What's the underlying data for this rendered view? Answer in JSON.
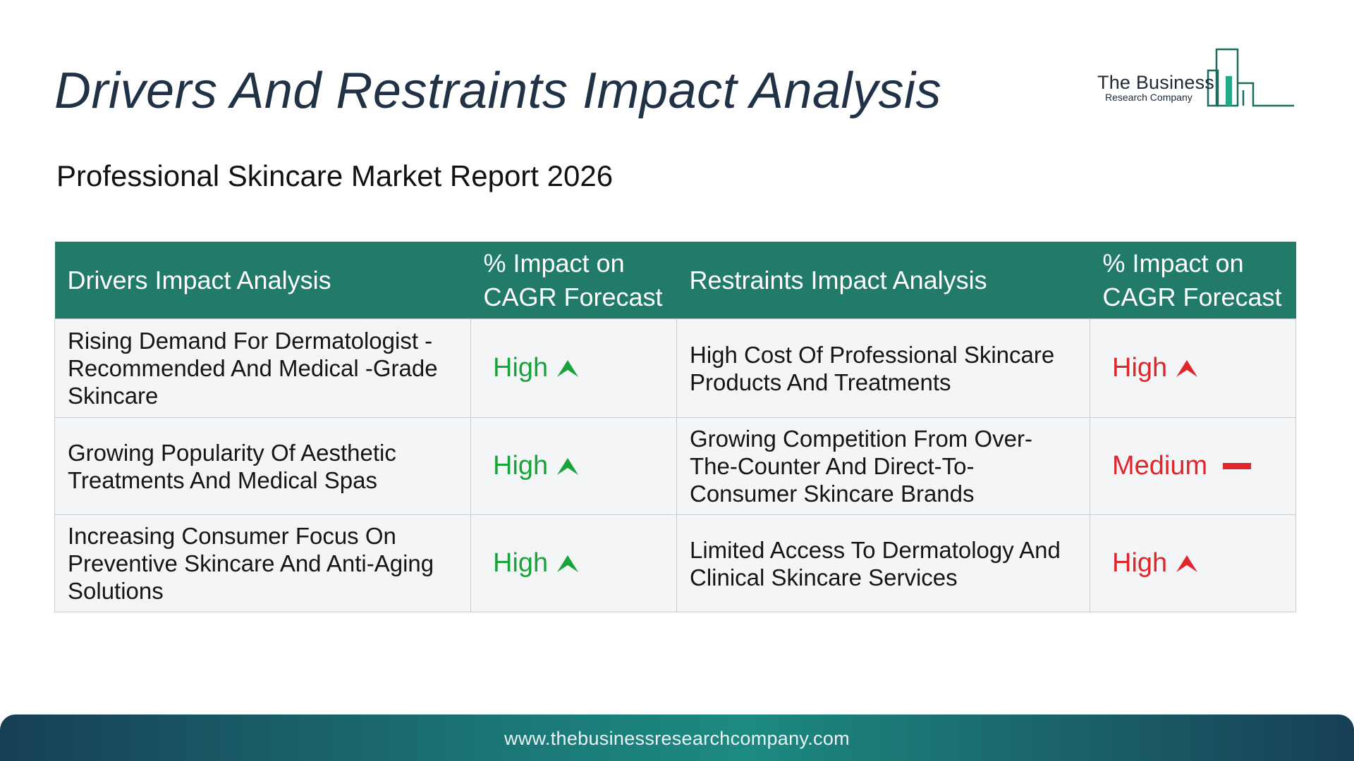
{
  "title": "Drivers And Restraints Impact Analysis",
  "subtitle": "Professional Skincare Market Report 2026",
  "logo": {
    "line1": "The Business",
    "line2": "Research Company"
  },
  "table": {
    "headers": {
      "drivers": "Drivers Impact Analysis",
      "drivers_impact": "% Impact on CAGR Forecast",
      "restraints": "Restraints Impact Analysis",
      "restraints_impact": "% Impact on CAGR Forecast"
    },
    "rows": [
      {
        "driver": "Rising Demand For Dermatologist -Recommended And Medical -Grade Skincare",
        "driver_impact": "High",
        "driver_icon": "arrow-up-icon",
        "restraint": "High Cost Of Professional Skincare Products And Treatments",
        "restraint_impact": "High",
        "restraint_icon": "arrow-up-icon"
      },
      {
        "driver": "Growing Popularity Of Aesthetic Treatments And Medical Spas",
        "driver_impact": "High",
        "driver_icon": "arrow-up-icon",
        "restraint": "Growing Competition From Over-The-Counter And Direct-To-Consumer Skincare Brands",
        "restraint_impact": "Medium",
        "restraint_icon": "dash-icon"
      },
      {
        "driver": "Increasing Consumer Focus On Preventive Skincare And Anti-Aging Solutions",
        "driver_impact": "High",
        "driver_icon": "arrow-up-icon",
        "restraint": "Limited Access To Dermatology And Clinical Skincare Services",
        "restraint_impact": "High",
        "restraint_icon": "arrow-up-icon"
      }
    ]
  },
  "colors": {
    "header_bg": "#227a68",
    "driver_impact": "#18a33b",
    "restraint_impact": "#e0262b",
    "title": "#223246"
  },
  "footer": {
    "url": "www.thebusinessresearchcompany.com"
  }
}
